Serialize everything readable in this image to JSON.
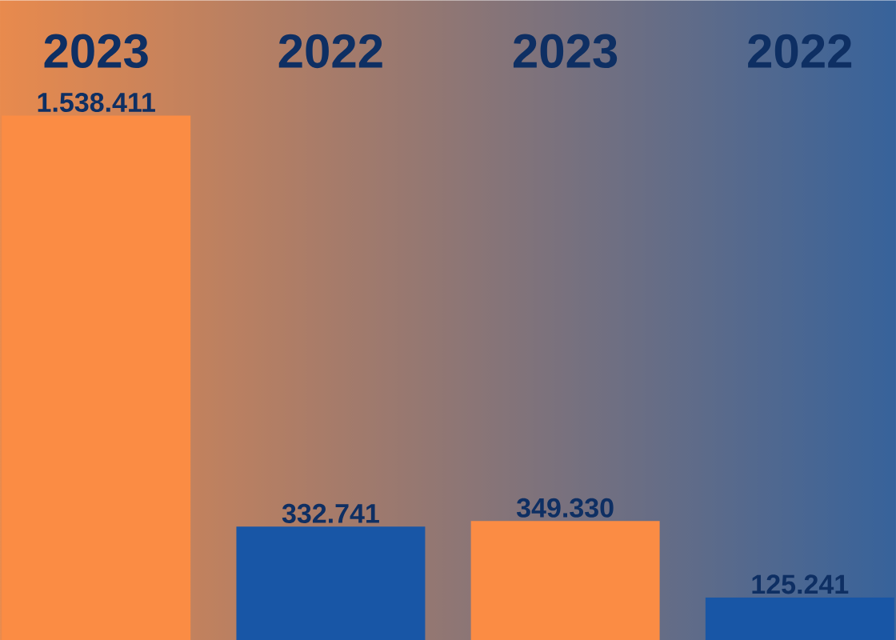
{
  "chart_data": {
    "type": "bar",
    "categories": [
      "2023",
      "2022",
      "2023",
      "2022"
    ],
    "values": [
      1538411,
      332741,
      349330,
      125241
    ],
    "colors": [
      "#fb8c44",
      "#1856a6",
      "#fb8c44",
      "#1856a6"
    ],
    "value_labels": [
      "1.538.411",
      "332.741",
      "349.330",
      "125.241"
    ]
  }
}
